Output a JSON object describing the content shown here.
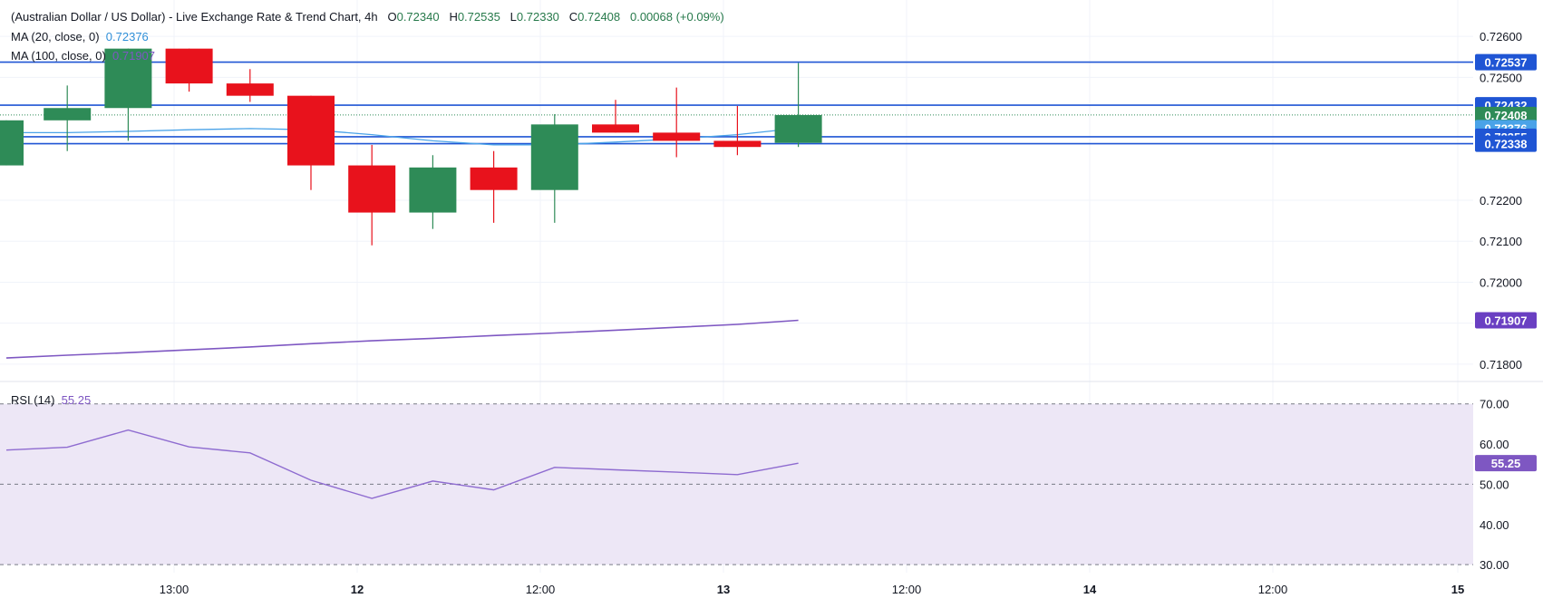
{
  "header": {
    "title": "(Australian Dollar / US Dollar) - Live Exchange Rate & Trend Chart, 4h",
    "o_label": "O",
    "o_value": "0.72340",
    "h_label": "H",
    "h_value": "0.72535",
    "l_label": "L",
    "l_value": "0.72330",
    "c_label": "C",
    "c_value": "0.72408",
    "change": "0.00068 (+0.09%)"
  },
  "indicators": {
    "ma20_label": "MA (20, close, 0)",
    "ma20_value": "0.72376",
    "ma100_label": "MA (100, close, 0)",
    "ma100_value": "0.71907",
    "rsi_label": "RSI (14)",
    "rsi_value": "55.25"
  },
  "colors": {
    "up": "#2e8b57",
    "down": "#e8121c",
    "ma20": "#4aa3e8",
    "ma100": "#7e57c2",
    "hline": "#1f55d4",
    "rsi": "#8e6bd0",
    "rsi_band": "#ede7f6"
  },
  "chart_data": [
    {
      "type": "candlestick",
      "title": "(Australian Dollar / US Dollar) - Live Exchange Rate & Trend Chart, 4h",
      "price_axis_ticks": [
        "0.72600",
        "0.72500",
        "0.72200",
        "0.72100",
        "0.72000",
        "0.71800"
      ],
      "ylim": [
        0.7176,
        0.7264
      ],
      "time_axis_ticks": [
        "13:00",
        "12",
        "12:00",
        "13",
        "12:00",
        "14",
        "12:00",
        "15"
      ],
      "candles": [
        {
          "o": 0.72285,
          "h": 0.72395,
          "l": 0.72285,
          "c": 0.72395
        },
        {
          "o": 0.72395,
          "h": 0.7248,
          "l": 0.7232,
          "c": 0.72425
        },
        {
          "o": 0.72425,
          "h": 0.7257,
          "l": 0.72345,
          "c": 0.7257
        },
        {
          "o": 0.7257,
          "h": 0.7257,
          "l": 0.72465,
          "c": 0.72485
        },
        {
          "o": 0.72485,
          "h": 0.7252,
          "l": 0.7244,
          "c": 0.72455
        },
        {
          "o": 0.72455,
          "h": 0.72455,
          "l": 0.72225,
          "c": 0.72285
        },
        {
          "o": 0.72285,
          "h": 0.72335,
          "l": 0.7209,
          "c": 0.7217
        },
        {
          "o": 0.7217,
          "h": 0.7231,
          "l": 0.7213,
          "c": 0.7228
        },
        {
          "o": 0.7228,
          "h": 0.7232,
          "l": 0.72145,
          "c": 0.72225
        },
        {
          "o": 0.72225,
          "h": 0.7241,
          "l": 0.72145,
          "c": 0.72385
        },
        {
          "o": 0.72385,
          "h": 0.72445,
          "l": 0.72365,
          "c": 0.72365
        },
        {
          "o": 0.72365,
          "h": 0.72475,
          "l": 0.72305,
          "c": 0.72345
        },
        {
          "o": 0.72345,
          "h": 0.7243,
          "l": 0.7231,
          "c": 0.7233
        },
        {
          "o": 0.7234,
          "h": 0.72535,
          "l": 0.7233,
          "c": 0.72408
        }
      ],
      "ma20": [
        0.72365,
        0.72365,
        0.72368,
        0.72372,
        0.72375,
        0.72372,
        0.7236,
        0.72345,
        0.72335,
        0.72335,
        0.72342,
        0.7235,
        0.7236,
        0.72376
      ],
      "ma100": [
        0.71815,
        0.71822,
        0.71828,
        0.71835,
        0.71842,
        0.7185,
        0.71857,
        0.71863,
        0.7187,
        0.71876,
        0.71883,
        0.7189,
        0.71897,
        0.71907
      ],
      "horizontal_lines": [
        0.72537,
        0.72432,
        0.72355,
        0.72338
      ],
      "price_labels": [
        {
          "value": "0.72537",
          "kind": "hline"
        },
        {
          "value": "0.72432",
          "kind": "hline"
        },
        {
          "value": "0.72408",
          "kind": "last"
        },
        {
          "value": "0.72376",
          "kind": "ma20"
        },
        {
          "value": "0.72355",
          "kind": "hline"
        },
        {
          "value": "0.72338",
          "kind": "hline"
        },
        {
          "value": "0.71907",
          "kind": "ma100"
        }
      ]
    },
    {
      "type": "line",
      "title": "RSI (14)",
      "y_axis_ticks": [
        "70.00",
        "60.00",
        "50.00",
        "40.00",
        "30.00"
      ],
      "ylim": [
        28,
        74
      ],
      "band": [
        30,
        70
      ],
      "midline": 50,
      "values": [
        58.5,
        59.2,
        63.5,
        59.3,
        57.8,
        51.0,
        46.5,
        50.8,
        48.6,
        54.2,
        53.6,
        53.0,
        52.4,
        55.25
      ],
      "last_label": "55.25"
    }
  ]
}
